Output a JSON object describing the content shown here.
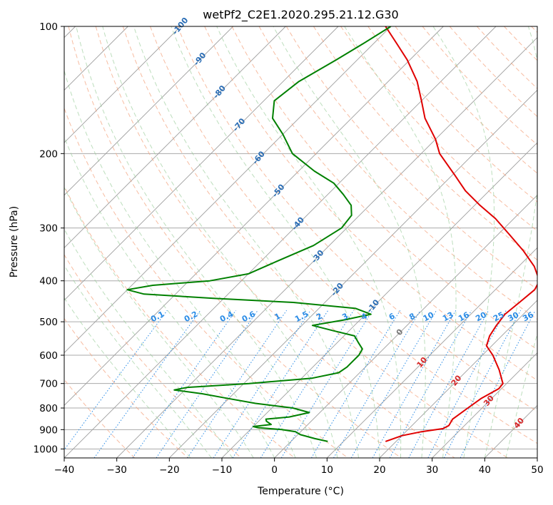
{
  "chart_data": {
    "type": "line",
    "title": "wetPf2_C2E1.2020.295.21.12.G30",
    "xlabel": "Temperature (°C)",
    "ylabel": "Pressure (hPa)",
    "xlim": [
      -40,
      50
    ],
    "ylim": [
      1050,
      100
    ],
    "y_scale": "log",
    "skew": "skew-T log-P diagram",
    "grid": true,
    "x_ticks": [
      "−40",
      "−30",
      "−20",
      "−10",
      "0",
      "10",
      "20",
      "30",
      "40",
      "50"
    ],
    "y_ticks": [
      "100",
      "200",
      "300",
      "400",
      "500",
      "600",
      "700",
      "800",
      "900",
      "1000"
    ],
    "colors": {
      "temperature": "#e00000",
      "dewpoint": "#008000",
      "dry_adiabat": "#f4a582",
      "moist_adiabat": "#99cc99",
      "mixing_ratio": "#2b8ce6",
      "isotherm": "#888888",
      "isobar": "#aaaaaa"
    },
    "series": [
      {
        "color": "#e00000",
        "points": [
          {
            "p": 960,
            "t": 18
          },
          {
            "p": 930,
            "t": 20
          },
          {
            "p": 910,
            "t": 23
          },
          {
            "p": 895,
            "t": 26.5
          },
          {
            "p": 880,
            "t": 27
          },
          {
            "p": 850,
            "t": 26.5
          },
          {
            "p": 800,
            "t": 27.3
          },
          {
            "p": 760,
            "t": 28
          },
          {
            "p": 720,
            "t": 29.5
          },
          {
            "p": 700,
            "t": 29.3
          },
          {
            "p": 650,
            "t": 26
          },
          {
            "p": 600,
            "t": 22
          },
          {
            "p": 570,
            "t": 19
          },
          {
            "p": 540,
            "t": 17.7
          },
          {
            "p": 510,
            "t": 17
          },
          {
            "p": 480,
            "t": 16.5
          },
          {
            "p": 450,
            "t": 17
          },
          {
            "p": 420,
            "t": 17.5
          },
          {
            "p": 400,
            "t": 16.7
          },
          {
            "p": 370,
            "t": 13
          },
          {
            "p": 340,
            "t": 8
          },
          {
            "p": 310,
            "t": 2
          },
          {
            "p": 285,
            "t": -3.5
          },
          {
            "p": 265,
            "t": -9
          },
          {
            "p": 245,
            "t": -14.5
          },
          {
            "p": 225,
            "t": -19.5
          },
          {
            "p": 200,
            "t": -26.5
          },
          {
            "p": 185,
            "t": -30
          },
          {
            "p": 165,
            "t": -36
          },
          {
            "p": 150,
            "t": -40
          },
          {
            "p": 135,
            "t": -44.5
          },
          {
            "p": 120,
            "t": -50.5
          },
          {
            "p": 110,
            "t": -55.5
          },
          {
            "p": 100,
            "t": -61
          }
        ]
      },
      {
        "color": "#008000",
        "points": [
          {
            "p": 960,
            "t": 7
          },
          {
            "p": 945,
            "t": 4
          },
          {
            "p": 925,
            "t": 0.5
          },
          {
            "p": 910,
            "t": -1
          },
          {
            "p": 900,
            "t": -4
          },
          {
            "p": 890,
            "t": -9
          },
          {
            "p": 885,
            "t": -10
          },
          {
            "p": 875,
            "t": -7
          },
          {
            "p": 860,
            "t": -8.5
          },
          {
            "p": 850,
            "t": -9
          },
          {
            "p": 840,
            "t": -5
          },
          {
            "p": 820,
            "t": -2
          },
          {
            "p": 800,
            "t": -6
          },
          {
            "p": 780,
            "t": -14
          },
          {
            "p": 760,
            "t": -20
          },
          {
            "p": 740,
            "t": -26
          },
          {
            "p": 725,
            "t": -32
          },
          {
            "p": 715,
            "t": -30
          },
          {
            "p": 700,
            "t": -19
          },
          {
            "p": 680,
            "t": -8
          },
          {
            "p": 660,
            "t": -4
          },
          {
            "p": 640,
            "t": -3.5
          },
          {
            "p": 620,
            "t": -3.5
          },
          {
            "p": 600,
            "t": -3.5
          },
          {
            "p": 580,
            "t": -4
          },
          {
            "p": 560,
            "t": -6
          },
          {
            "p": 540,
            "t": -8
          },
          {
            "p": 525,
            "t": -13
          },
          {
            "p": 510,
            "t": -18
          },
          {
            "p": 495,
            "t": -13
          },
          {
            "p": 480,
            "t": -9
          },
          {
            "p": 465,
            "t": -13
          },
          {
            "p": 450,
            "t": -26
          },
          {
            "p": 440,
            "t": -42
          },
          {
            "p": 430,
            "t": -56
          },
          {
            "p": 420,
            "t": -60
          },
          {
            "p": 410,
            "t": -56
          },
          {
            "p": 400,
            "t": -46
          },
          {
            "p": 385,
            "t": -40
          },
          {
            "p": 360,
            "t": -37
          },
          {
            "p": 330,
            "t": -33
          },
          {
            "p": 300,
            "t": -31
          },
          {
            "p": 280,
            "t": -31.5
          },
          {
            "p": 265,
            "t": -33.5
          },
          {
            "p": 250,
            "t": -37
          },
          {
            "p": 235,
            "t": -41
          },
          {
            "p": 220,
            "t": -47
          },
          {
            "p": 200,
            "t": -54.5
          },
          {
            "p": 180,
            "t": -60
          },
          {
            "p": 165,
            "t": -65
          },
          {
            "p": 150,
            "t": -68
          },
          {
            "p": 135,
            "t": -67
          },
          {
            "p": 120,
            "t": -64
          },
          {
            "p": 110,
            "t": -62
          },
          {
            "p": 100,
            "t": -60
          }
        ]
      }
    ],
    "dry_adiabat_labels": [
      "-100",
      "-90",
      "-80",
      "-70",
      "-60",
      "-50",
      "-40",
      "-30",
      "-20",
      "-10",
      "0",
      "10",
      "20",
      "30",
      "40"
    ],
    "mixing_ratio_labels": [
      "0.1",
      "0.2",
      "0.4",
      "0.6",
      "1",
      "1.5",
      "2",
      "3",
      "4",
      "6",
      "8",
      "10",
      "13",
      "16",
      "20",
      "25",
      "30",
      "36"
    ]
  }
}
